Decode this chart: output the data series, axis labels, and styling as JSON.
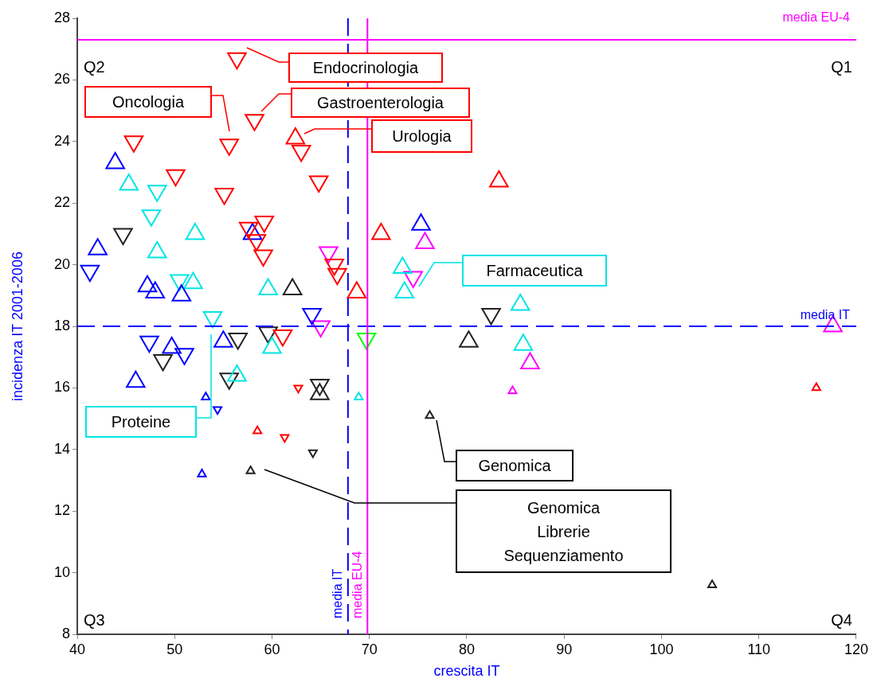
{
  "chart_data": {
    "type": "bubble",
    "xlabel": "crescita IT",
    "ylabel": "incidenza IT 2001-2006",
    "xlim": [
      40,
      120
    ],
    "xticks": [
      40,
      50,
      60,
      70,
      80,
      90,
      100,
      110,
      120
    ],
    "ylim": [
      8,
      28
    ],
    "yticks": [
      8,
      10,
      12,
      14,
      16,
      18,
      20,
      22,
      24,
      26,
      28
    ],
    "grid": false,
    "legend": false,
    "series": [
      {
        "color": "#ff0000",
        "marker": "triangle_down",
        "x": [
          56.4,
          55.6,
          58.2,
          45.8,
          50.1,
          55.1,
          63.0,
          64.8,
          57.6,
          59.2,
          58.4,
          59.1,
          66.4,
          66.7,
          61.1,
          61.3,
          62.7
        ],
        "values": [
          26.7,
          23.9,
          24.7,
          24.0,
          22.9,
          22.3,
          23.7,
          22.7,
          21.2,
          21.4,
          20.8,
          20.3,
          20.0,
          19.7,
          17.7,
          14.4,
          16.0
        ],
        "sizes": [
          1,
          1,
          1,
          1,
          1,
          1,
          1,
          1,
          1,
          1,
          1,
          1,
          1,
          1,
          1,
          0.2,
          0.2
        ]
      },
      {
        "color": "#ff0000",
        "marker": "triangle",
        "x": [
          62.4,
          68.7,
          71.2,
          83.3,
          58.5,
          115.9
        ],
        "values": [
          24.1,
          19.1,
          21.0,
          22.7,
          14.6,
          16.0
        ],
        "sizes": [
          1,
          1,
          1,
          1,
          0.2,
          0.2
        ]
      },
      {
        "color": "#0000ff",
        "marker": "triangle",
        "x": [
          43.9,
          42.1,
          47.2,
          48.0,
          50.7,
          58.0,
          75.3,
          49.7,
          55.0,
          46.0,
          53.2,
          52.8
        ],
        "values": [
          23.3,
          20.5,
          19.3,
          19.1,
          19.0,
          21.0,
          21.3,
          17.3,
          17.5,
          16.2,
          15.7,
          13.2
        ],
        "sizes": [
          1,
          1,
          1,
          1,
          1,
          1,
          1,
          1,
          1,
          1,
          0.2,
          0.2
        ]
      },
      {
        "color": "#0000ff",
        "marker": "triangle_down",
        "x": [
          41.3,
          64.1,
          47.4,
          51.0,
          54.4
        ],
        "values": [
          19.8,
          18.4,
          17.5,
          17.1,
          15.3
        ],
        "sizes": [
          1,
          1,
          1,
          1,
          0.2
        ]
      },
      {
        "color": "#00e5e5",
        "marker": "triangle",
        "x": [
          45.3,
          48.2,
          52.1,
          51.9,
          59.6,
          60.0,
          56.4,
          73.4,
          73.6,
          85.5,
          85.8,
          68.9
        ],
        "values": [
          22.6,
          20.4,
          21.0,
          19.4,
          19.2,
          17.3,
          16.4,
          19.9,
          19.1,
          18.7,
          17.4,
          15.7
        ],
        "sizes": [
          1,
          1,
          1,
          1,
          1,
          1,
          1,
          1,
          1,
          1,
          1,
          0.2
        ]
      },
      {
        "color": "#00e5e5",
        "marker": "triangle_down",
        "x": [
          48.2,
          47.6,
          50.5,
          53.9
        ],
        "values": [
          22.4,
          21.6,
          19.5,
          18.3
        ],
        "sizes": [
          1,
          1,
          1,
          1
        ]
      },
      {
        "color": "#ff00ff",
        "marker": "triangle_down",
        "x": [
          65.8,
          65.0,
          74.5
        ],
        "values": [
          20.4,
          18.0,
          19.6
        ],
        "sizes": [
          1,
          1,
          1
        ]
      },
      {
        "color": "#ff00ff",
        "marker": "triangle",
        "x": [
          75.7,
          86.5,
          117.6,
          84.7
        ],
        "values": [
          20.7,
          16.8,
          18.0,
          15.9
        ],
        "sizes": [
          1,
          1,
          1,
          0.2
        ]
      },
      {
        "color": "#00ff00",
        "marker": "triangle_down",
        "x": [
          69.7
        ],
        "values": [
          17.6
        ],
        "sizes": [
          1
        ]
      },
      {
        "color": "#222222",
        "marker": "triangle_down",
        "x": [
          44.7,
          82.5,
          48.8,
          56.5,
          59.6,
          55.6,
          64.9,
          64.2
        ],
        "values": [
          21.0,
          18.4,
          16.9,
          17.6,
          17.8,
          16.3,
          16.1,
          13.9
        ],
        "sizes": [
          1,
          1,
          1,
          1,
          1,
          1,
          1,
          0.2
        ]
      },
      {
        "color": "#222222",
        "marker": "triangle",
        "x": [
          62.1,
          80.2,
          64.9,
          57.8,
          76.2,
          105.2
        ],
        "values": [
          19.2,
          17.5,
          15.8,
          13.3,
          15.1,
          9.6
        ],
        "sizes": [
          1,
          1,
          1,
          0.2,
          0.2,
          0.2
        ]
      }
    ],
    "ref_lines": [
      {
        "axis": "y",
        "value": 27.3,
        "label": "media EU-4",
        "color": "#ff00ff",
        "line_style": "solid"
      },
      {
        "axis": "y",
        "value": 18.0,
        "label": "media IT",
        "color": "#0000ff",
        "line_style": "dashed"
      },
      {
        "axis": "x",
        "value": 67.8,
        "label": "media IT",
        "color": "#0000ff",
        "line_style": "dashed"
      },
      {
        "axis": "x",
        "value": 69.8,
        "label": "media EU-4",
        "color": "#ff00ff",
        "line_style": "solid"
      }
    ],
    "annotations": [
      "Q2",
      "Q1",
      "Q3",
      "Q4",
      "Endocrinologia",
      "Gastroenterologia",
      "Oncologia",
      "Urologia",
      "Farmaceutica",
      "Proteine",
      "Genomica",
      "Genomica\nLibrerie\nSequenziamento"
    ]
  }
}
